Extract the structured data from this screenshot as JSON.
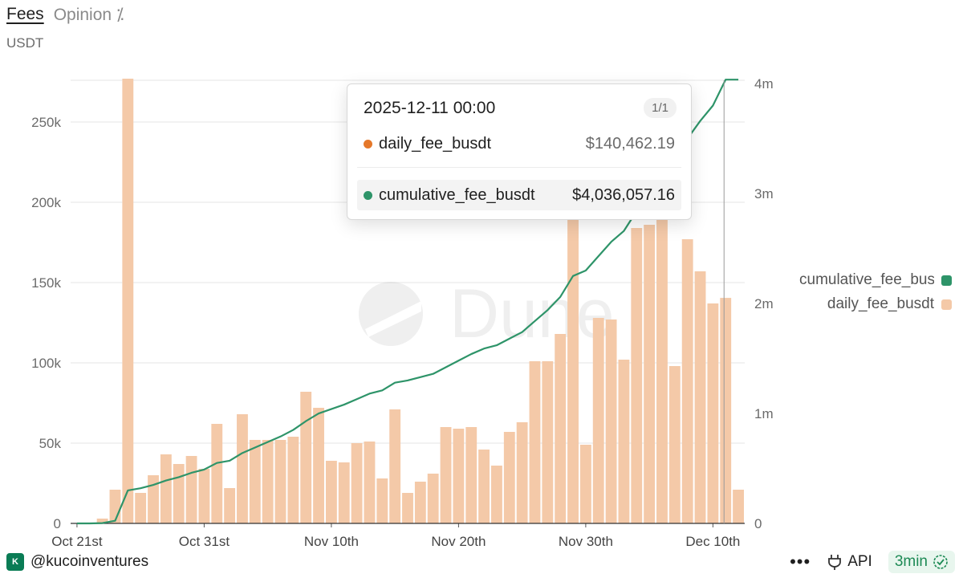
{
  "tabs": [
    {
      "label": "Fees"
    },
    {
      "label": "Opinion ⁒"
    }
  ],
  "unit_label": "USDT",
  "chart_data": {
    "type": "bar+line",
    "watermark": "Dune",
    "x_tick_labels": [
      "Oct 21st",
      "Oct 31st",
      "Nov 10th",
      "Nov 20th",
      "Nov 30th",
      "Dec 10th"
    ],
    "x_tick_index": [
      0,
      10,
      20,
      30,
      40,
      50
    ],
    "categories_start": "2025-10-21",
    "left_axis": {
      "ticks": [
        0,
        50000,
        100000,
        150000,
        200000,
        250000
      ],
      "labels": [
        "0",
        "50k",
        "100k",
        "150k",
        "200k",
        "250k"
      ],
      "ylim": [
        0,
        276000
      ]
    },
    "right_axis": {
      "ticks": [
        0,
        1000000,
        2000000,
        3000000,
        4000000
      ],
      "labels": [
        "0",
        "1m",
        "2m",
        "3m",
        "4m"
      ],
      "ylim": [
        0,
        4030000
      ]
    },
    "series": [
      {
        "name": "daily_fee_busdt",
        "axis": "left",
        "kind": "bar",
        "color": "#f4c9a8",
        "values": [
          0,
          0,
          3000,
          21000,
          277000,
          19000,
          30000,
          43000,
          37000,
          42000,
          34000,
          62000,
          22000,
          68000,
          52000,
          52000,
          52000,
          54000,
          82000,
          72000,
          39000,
          38000,
          50000,
          51000,
          28000,
          71000,
          19000,
          26000,
          31000,
          60000,
          59000,
          60000,
          46000,
          36000,
          57000,
          63000,
          101000,
          101000,
          118000,
          190000,
          49000,
          128000,
          127000,
          102000,
          184000,
          186000,
          189000,
          98000,
          177000,
          157000,
          137000,
          140462.19,
          21000
        ]
      },
      {
        "name": "cumulative_fee_busdt",
        "axis": "right",
        "kind": "line",
        "color": "#2e9469",
        "values": [
          0,
          0,
          3000,
          24000,
          300000,
          320000,
          350000,
          390000,
          420000,
          460000,
          490000,
          550000,
          570000,
          640000,
          690000,
          740000,
          790000,
          850000,
          930000,
          1000000,
          1040000,
          1080000,
          1130000,
          1180000,
          1210000,
          1280000,
          1300000,
          1330000,
          1360000,
          1420000,
          1480000,
          1540000,
          1590000,
          1620000,
          1680000,
          1740000,
          1840000,
          1940000,
          2060000,
          2250000,
          2300000,
          2430000,
          2560000,
          2660000,
          2840000,
          3030000,
          3220000,
          3320000,
          3500000,
          3660000,
          3800000,
          4036057.16,
          4036057.16
        ]
      }
    ]
  },
  "tooltip": {
    "date": "2025-12-11 00:00",
    "page": "1/1",
    "rows": [
      {
        "name": "daily_fee_busdt",
        "value": "$140,462.19",
        "color": "#e5782a"
      },
      {
        "name": "cumulative_fee_busdt",
        "value": "$4,036,057.16",
        "color": "#2e9469"
      }
    ]
  },
  "legend": [
    {
      "label": "cumulative_fee_busdt",
      "color": "#2e9469"
    },
    {
      "label": "daily_fee_busdt",
      "color": "#f4c9a8"
    }
  ],
  "footer": {
    "author": "@kucoinventures",
    "api_label": "API",
    "refresh": "3min"
  }
}
